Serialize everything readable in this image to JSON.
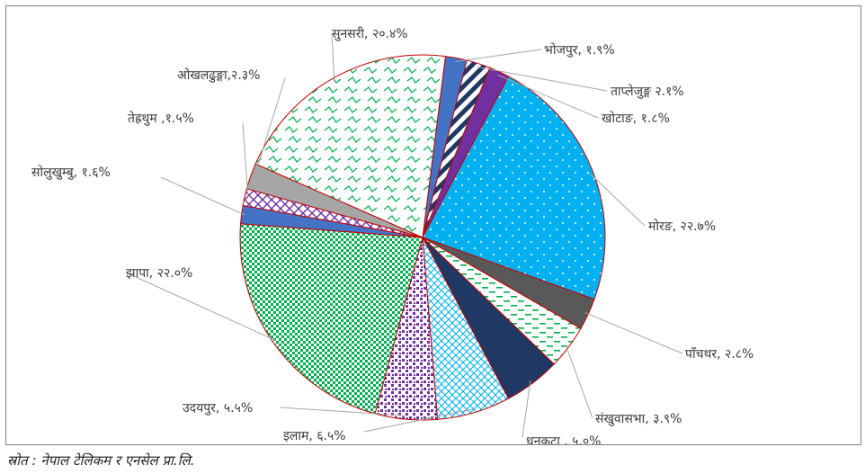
{
  "source_note": "स्रोत : नेपाल टेलिकम र एनसेल प्रा.लि.",
  "chart_data": {
    "type": "pie",
    "title": "",
    "slices": [
      {
        "label": "भोजपुर, १.९%",
        "value": 1.9,
        "color": "#4472c4",
        "pattern": "solid"
      },
      {
        "label": "ताप्लेजुङ्ग २.१%",
        "value": 2.1,
        "color": "#1f3864",
        "pattern": "stripes"
      },
      {
        "label": "खोटाङ, १.८%",
        "value": 1.8,
        "color": "#7030a0",
        "pattern": "solid"
      },
      {
        "label": "मोरङ, २२.७%",
        "value": 22.7,
        "color": "#00b0f0",
        "pattern": "dots"
      },
      {
        "label": "पाँचथर, २.८%",
        "value": 2.8,
        "color": "#595959",
        "pattern": "solid"
      },
      {
        "label": "संखुवासभा, ३.९%",
        "value": 3.9,
        "color": "#00b050",
        "pattern": "dashes"
      },
      {
        "label": "धनकुटा , ५.०%",
        "value": 5.0,
        "color": "#1f3864",
        "pattern": "solid"
      },
      {
        "label": "इलाम, ६.५%",
        "value": 6.5,
        "color": "#00b0f0",
        "pattern": "diamond"
      },
      {
        "label": "उदयपुर, ५.५%",
        "value": 5.5,
        "color": "#7030a0",
        "pattern": "confetti"
      },
      {
        "label": "झापा, २२.०%",
        "value": 22.0,
        "color": "#00b050",
        "pattern": "checker"
      },
      {
        "label": "सोलुखुम्बु, १.६%",
        "value": 1.6,
        "color": "#4472c4",
        "pattern": "solid"
      },
      {
        "label": "तेह्रथुम ,१.५%",
        "value": 1.5,
        "color": "#7030a0",
        "pattern": "cross"
      },
      {
        "label": "ओखलढुङ्गा,२.३%",
        "value": 2.3,
        "color": "#a6a6a6",
        "pattern": "solid"
      },
      {
        "label": "सुनसरी, २०.४%",
        "value": 20.4,
        "color": "#00b050",
        "pattern": "zigzag"
      }
    ]
  }
}
